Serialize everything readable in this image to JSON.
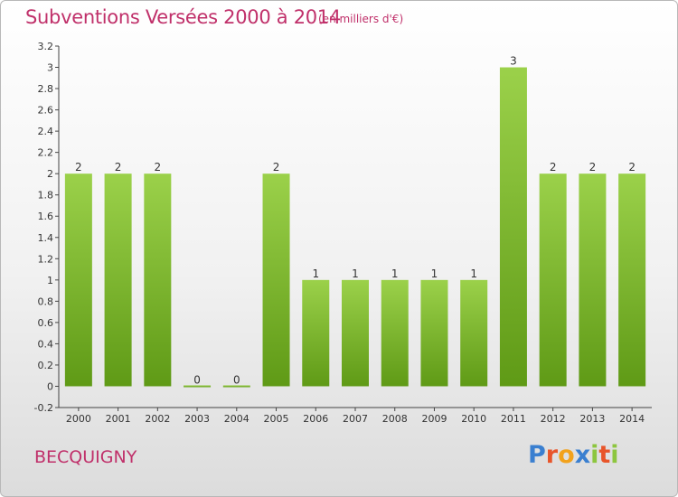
{
  "header": {
    "title": "Subventions Versées 2000 à 2014",
    "unit": "(en milliers d'€)"
  },
  "footer": {
    "commune": "BECQUIGNY",
    "logo_letters": [
      "P",
      "r",
      "o",
      "x",
      "i",
      "t",
      "i"
    ],
    "logo_colors": [
      "#3a7fd0",
      "#e8552a",
      "#f2a21c",
      "#3a7fd0",
      "#8dc63f",
      "#e8552a",
      "#8dc63f"
    ]
  },
  "chart_data": {
    "type": "bar",
    "title": "Subventions Versées 2000 à 2014",
    "ylabel": "(en milliers d'€)",
    "categories": [
      "2000",
      "2001",
      "2002",
      "2003",
      "2004",
      "2005",
      "2006",
      "2007",
      "2008",
      "2009",
      "2010",
      "2011",
      "2012",
      "2013",
      "2014"
    ],
    "values": [
      2,
      2,
      2,
      0,
      0,
      2,
      1,
      1,
      1,
      1,
      1,
      3,
      2,
      2,
      2
    ],
    "value_labels": [
      "2",
      "2",
      "2",
      "0",
      "0",
      "2",
      "1",
      "1",
      "1",
      "1",
      "1",
      "3",
      "2",
      "2",
      "2"
    ],
    "ylim": [
      -0.2,
      3.2
    ],
    "yticks": [
      "-0.2",
      "0",
      "0.2",
      "0.4",
      "0.6",
      "0.8",
      "1",
      "1.2",
      "1.4",
      "1.6",
      "1.8",
      "2",
      "2.2",
      "2.4",
      "2.6",
      "2.8",
      "3",
      "3.2"
    ],
    "ytick_values": [
      -0.2,
      0,
      0.2,
      0.4,
      0.6,
      0.8,
      1,
      1.2,
      1.4,
      1.6,
      1.8,
      2,
      2.2,
      2.4,
      2.6,
      2.8,
      3,
      3.2
    ],
    "grid": false,
    "bar_color": "#7cb82f"
  }
}
